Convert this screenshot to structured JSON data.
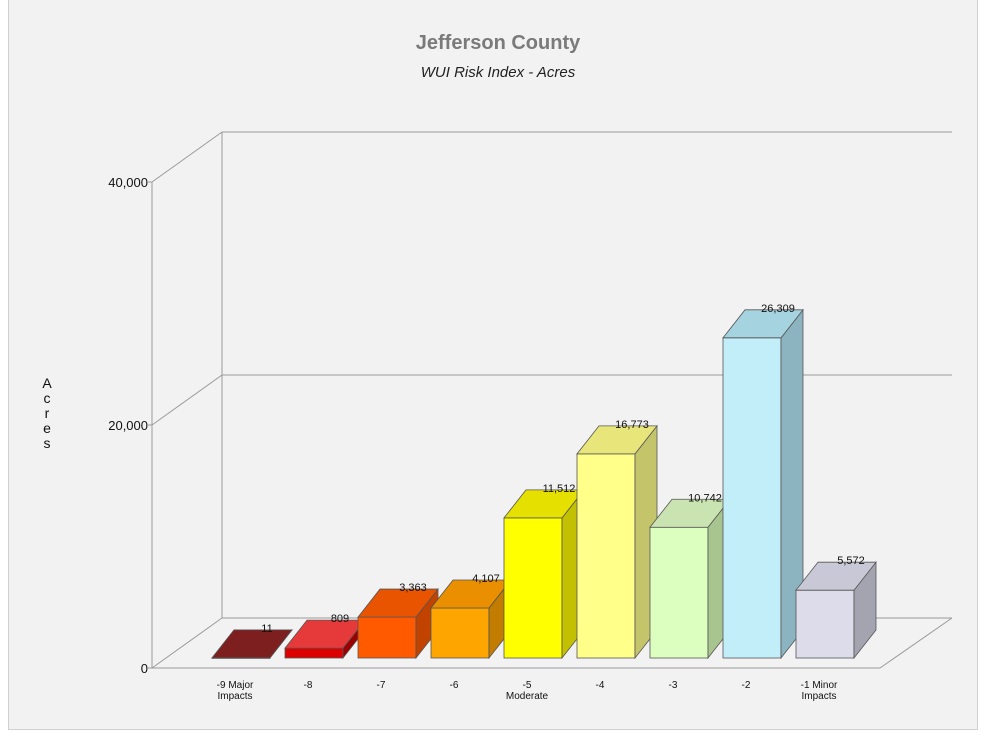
{
  "chart_data": {
    "type": "bar",
    "title": "Jefferson County",
    "subtitle": "WUI Risk Index - Acres",
    "xlabel": "",
    "ylabel": "Acres",
    "ylim": [
      0,
      40000
    ],
    "yticks": [
      {
        "value": 0,
        "label": "0"
      },
      {
        "value": 20000,
        "label": "20,000"
      },
      {
        "value": 40000,
        "label": "40,000"
      }
    ],
    "grid": true,
    "categories": [
      [
        "-9 Major",
        "Impacts"
      ],
      [
        "-8"
      ],
      [
        "-7"
      ],
      [
        "-6"
      ],
      [
        "-5",
        "Moderate"
      ],
      [
        "-4"
      ],
      [
        "-3"
      ],
      [
        "-2"
      ],
      [
        "-1 Minor",
        "Impacts"
      ]
    ],
    "values": [
      11,
      809,
      3363,
      4107,
      11512,
      16773,
      10742,
      26309,
      5572
    ],
    "value_labels": [
      "11",
      "809",
      "3,363",
      "4,107",
      "11,512",
      "16,773",
      "10,742",
      "26,309",
      "5,572"
    ],
    "colors": [
      {
        "front": "#6b1414",
        "side": "#4a0c0c",
        "top": "#7d1f1f"
      },
      {
        "front": "#dd0000",
        "side": "#9c0000",
        "top": "#e63a3a"
      },
      {
        "front": "#ff5a00",
        "side": "#c24300",
        "top": "#e85400"
      },
      {
        "front": "#ffa500",
        "side": "#c27d00",
        "top": "#ea8f00"
      },
      {
        "front": "#ffff00",
        "side": "#c2c000",
        "top": "#e6e000"
      },
      {
        "front": "#ffff8a",
        "side": "#c4c46a",
        "top": "#e8e67a"
      },
      {
        "front": "#dcffc0",
        "side": "#a8c48f",
        "top": "#c9e4b0"
      },
      {
        "front": "#c2eefa",
        "side": "#8bb3c0",
        "top": "#a5d3e0"
      },
      {
        "front": "#dcdcea",
        "side": "#a4a4b0",
        "top": "#c8c8d6"
      }
    ]
  }
}
